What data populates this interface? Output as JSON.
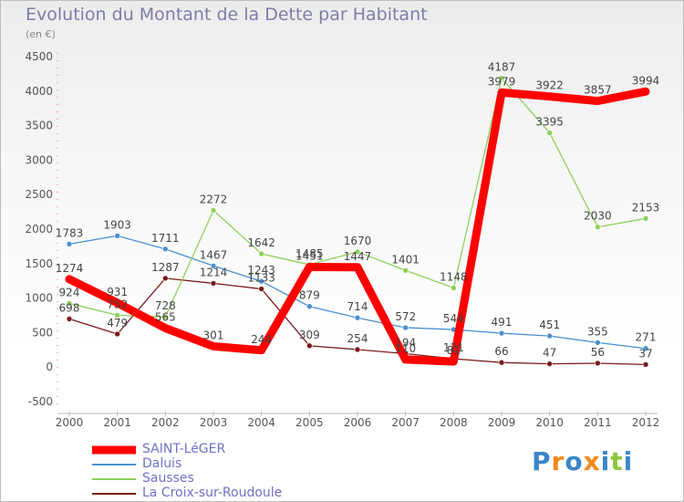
{
  "chart_data": {
    "type": "line",
    "title": "Evolution du Montant de la Dette par Habitant",
    "subtitle": "(en €)",
    "xlabel": "",
    "ylabel": "",
    "ylim": [
      -500,
      4500
    ],
    "yticks": [
      -500,
      0,
      500,
      1000,
      1500,
      2000,
      2500,
      3000,
      3500,
      4000,
      4500
    ],
    "x": [
      2000,
      2001,
      2002,
      2003,
      2004,
      2005,
      2006,
      2007,
      2008,
      2009,
      2010,
      2011,
      2012
    ],
    "grid": false,
    "legend": "bottom-left",
    "series": [
      {
        "name": "La Croix-sur-Roudoule",
        "color": "#7a1a1a",
        "values": [
          698,
          479,
          1287,
          1214,
          1133,
          309,
          254,
          194,
          121,
          66,
          47,
          56,
          37
        ],
        "labels": [
          "698",
          "479",
          "1287",
          "1214",
          "1133",
          "309",
          "254",
          "194",
          "121",
          "66",
          "47",
          "56",
          "37"
        ]
      },
      {
        "name": "Daluis",
        "color": "#4a90d0",
        "values": [
          1783,
          1903,
          1711,
          1467,
          1243,
          879,
          714,
          572,
          544,
          491,
          451,
          355,
          271
        ],
        "labels": [
          "1783",
          "1903",
          "1711",
          "1467",
          "1243",
          "879",
          "714",
          "572",
          "544",
          "491",
          "451",
          "355",
          "271"
        ]
      },
      {
        "name": "Sausses",
        "color": "#8ed05a",
        "values": [
          924,
          752,
          728,
          2272,
          1642,
          1485,
          1670,
          1401,
          1148,
          4187,
          3395,
          2030,
          2153
        ],
        "labels": [
          "924",
          "752",
          "728",
          "2272",
          "1642",
          "1485",
          "1670",
          "1401",
          "1148",
          "4187",
          "3395",
          "2030",
          "2153"
        ]
      },
      {
        "name": "SAINT-LéGER",
        "color": "#ff0000",
        "values": [
          1274,
          931,
          565,
          301,
          244,
          1451,
          1447,
          110,
          81,
          3979,
          3922,
          3857,
          3994
        ],
        "labels": [
          "1274",
          "931",
          "565",
          "301",
          "244",
          "1451",
          "1447",
          "110",
          "81",
          "3979",
          "3922",
          "3857",
          "3994"
        ]
      }
    ]
  },
  "legend_items": [
    {
      "name": "SAINT-LéGER",
      "color": "#ff0000",
      "weight": 9
    },
    {
      "name": "Daluis",
      "color": "#4a90d0",
      "weight": 2
    },
    {
      "name": "Sausses",
      "color": "#8ed05a",
      "weight": 2
    },
    {
      "name": "La Croix-sur-Roudoule",
      "color": "#7a1a1a",
      "weight": 2
    }
  ],
  "logo": {
    "l1": "P",
    "l2": "r",
    "l3": "o",
    "l4": "x",
    "l5": "i",
    "l6": "t",
    "l7": "i"
  }
}
